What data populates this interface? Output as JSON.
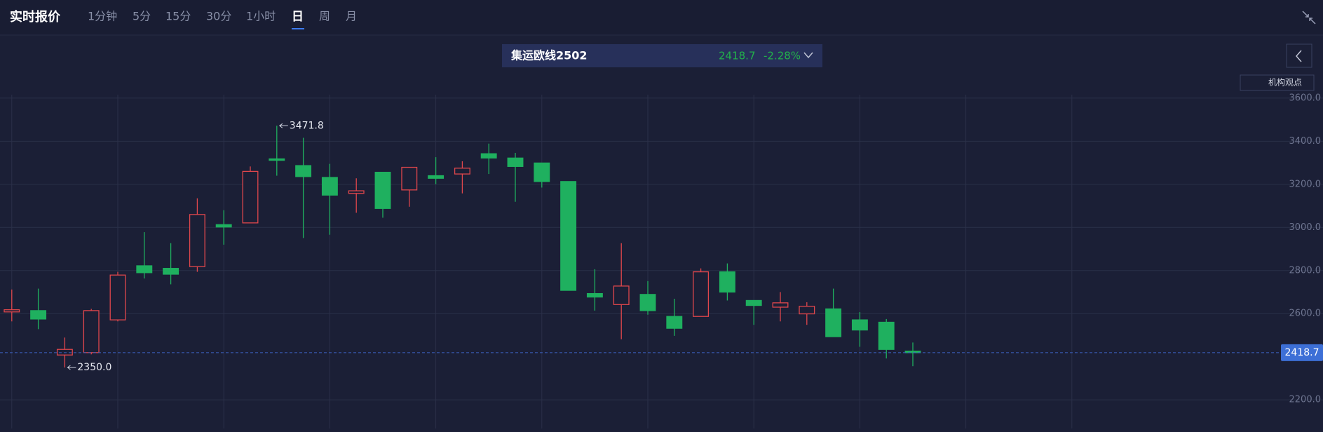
{
  "header": {
    "title": "实时报价",
    "tabs": [
      "1分钟",
      "5分",
      "15分",
      "30分",
      "1小时",
      "日",
      "周",
      "月"
    ],
    "active_tab": 5
  },
  "quote": {
    "name": "集运欧线2502",
    "price": "2418.7",
    "change": "-2.28%"
  },
  "side_button": "机构观点",
  "chart_data": {
    "type": "candlestick",
    "opens": [
      2608,
      2614,
      2408,
      2419,
      2571,
      2822,
      2810,
      2818,
      3013,
      3021,
      3318,
      3287,
      3232,
      3158,
      3256,
      3174,
      3240,
      3248,
      3342,
      3322,
      3299,
      3213,
      2693,
      2642,
      2689,
      2587,
      2587,
      2794,
      2661,
      2630,
      2599,
      2622,
      2571,
      2560,
      2426
    ],
    "highs": [
      2712,
      2716,
      2489,
      2622,
      2794,
      2978,
      2927,
      3135,
      3080,
      3283,
      3471.8,
      3416,
      3295,
      3228,
      3256,
      3279,
      3326,
      3307,
      3389,
      3346,
      3299,
      3213,
      2806,
      2927,
      2751,
      2669,
      2810,
      2833,
      2661,
      2700,
      2653,
      2716,
      2607,
      2575,
      2466
    ],
    "lows": [
      2564,
      2528,
      2350,
      2411,
      2564,
      2763,
      2736,
      2794,
      2920,
      3021,
      3240,
      2951,
      2966,
      3068,
      3045,
      3096,
      3201,
      3158,
      3248,
      3119,
      3185,
      2708,
      2614,
      2481,
      2595,
      2497,
      2587,
      2661,
      2548,
      2564,
      2548,
      2493,
      2446,
      2392,
      2356
    ],
    "closes": [
      2618,
      2575,
      2434,
      2614,
      2779,
      2790,
      2783,
      3060,
      3002,
      3260,
      3314,
      3236,
      3150,
      3170,
      3088,
      3279,
      3228,
      3275,
      3322,
      3283,
      3213,
      2708,
      2677,
      2728,
      2614,
      2532,
      2794,
      2700,
      2638,
      2650,
      2634,
      2493,
      2524,
      2434,
      2418.7
    ],
    "ylim": [
      2067,
      3616
    ],
    "yticks": [
      {
        "value": 2200,
        "label": "2200.0"
      },
      {
        "value": 2600,
        "label": "2600.0"
      },
      {
        "value": 2800,
        "label": "2800.0"
      },
      {
        "value": 3000,
        "label": "3000.0"
      },
      {
        "value": 3200,
        "label": "3200.0"
      },
      {
        "value": 3400,
        "label": "3400.0"
      },
      {
        "value": 3600,
        "label": "3600.0"
      }
    ],
    "grid": true,
    "up_color": "#e0474c",
    "down_color": "#1fb05f",
    "max_label": "3471.8",
    "min_label": "2350.0"
  }
}
